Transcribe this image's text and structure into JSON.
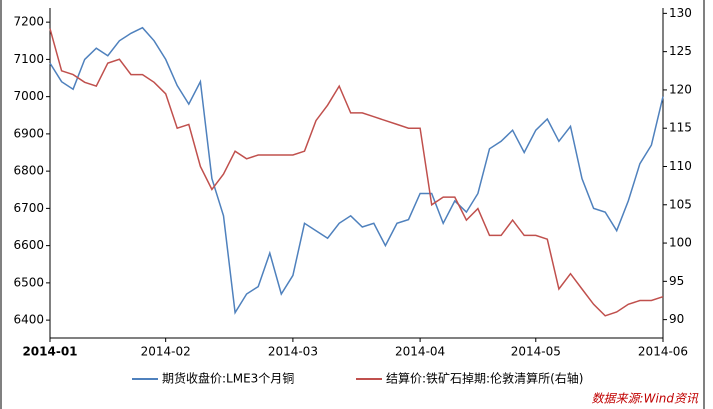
{
  "chart_data": {
    "type": "line",
    "categories": [
      "2014-01",
      null,
      null,
      null,
      null,
      null,
      null,
      null,
      null,
      null,
      "2014-02",
      null,
      null,
      null,
      null,
      null,
      null,
      null,
      null,
      null,
      null,
      "2014-03",
      null,
      null,
      null,
      null,
      null,
      null,
      null,
      null,
      null,
      null,
      "2014-04",
      null,
      null,
      null,
      null,
      null,
      null,
      null,
      null,
      null,
      "2014-05",
      null,
      null,
      null,
      null,
      null,
      null,
      null,
      null,
      null,
      null,
      "2014-06"
    ],
    "series": [
      {
        "name": "期货收盘价:LME3个月铜",
        "color": "#4f81bd",
        "axis": "y",
        "values": [
          7090,
          7040,
          7020,
          7100,
          7130,
          7110,
          7150,
          7170,
          7185,
          7150,
          7100,
          7030,
          6980,
          7040,
          6780,
          6680,
          6420,
          6470,
          6490,
          6580,
          6470,
          6520,
          6660,
          6640,
          6620,
          6660,
          6680,
          6650,
          6660,
          6600,
          6660,
          6670,
          6740,
          6740,
          6660,
          6720,
          6690,
          6740,
          6860,
          6880,
          6910,
          6850,
          6910,
          6940,
          6880,
          6920,
          6780,
          6700,
          6690,
          6640,
          6720,
          6820,
          6870,
          7000
        ]
      },
      {
        "name": "结算价:铁矿石掉期:伦敦清算所(右轴)",
        "color": "#c0504d",
        "axis": "y2",
        "values": [
          128,
          122.5,
          122,
          121,
          120.5,
          123.5,
          124,
          122,
          122,
          121,
          119.5,
          115,
          115.5,
          110,
          107,
          109,
          112,
          111,
          111.5,
          111.5,
          111.5,
          111.5,
          112,
          116,
          118,
          120.5,
          117,
          117,
          116.5,
          116,
          115.5,
          115,
          115,
          105,
          106,
          106,
          103,
          104.5,
          101,
          101,
          103,
          101,
          101,
          100.5,
          94,
          96,
          94,
          92,
          90.5,
          91,
          92,
          92.5,
          92.5,
          93
        ]
      }
    ],
    "ylim": [
      6352,
      7238
    ],
    "yticks": [
      6400,
      6500,
      6600,
      6700,
      6800,
      6900,
      7000,
      7100,
      7200
    ],
    "y2lim": [
      87.6,
      130.7
    ],
    "y2ticks": [
      90,
      95,
      100,
      105,
      110,
      115,
      120,
      125,
      130
    ],
    "source": "数据来源:Wind资讯"
  }
}
